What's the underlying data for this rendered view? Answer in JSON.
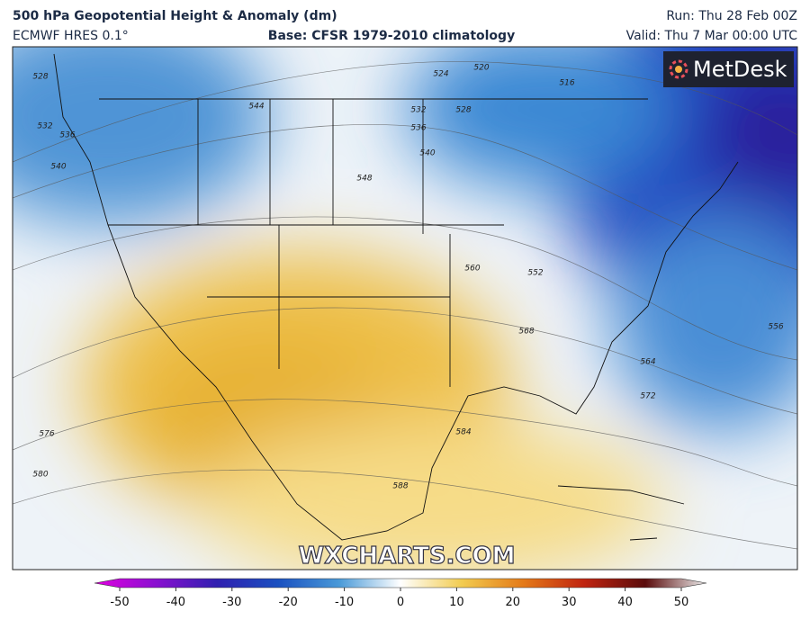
{
  "header": {
    "title": "500 hPa Geopotential Height & Anomaly (dm)",
    "model": "ECMWF HRES 0.1°",
    "base": "Base: CFSR 1979-2010 climatology",
    "run": "Run: Thu 28 Feb 00Z",
    "valid": "Valid: Thu 7 Mar 00:00 UTC"
  },
  "map": {
    "logo": "MetDesk",
    "watermark": "WXCHARTS.COM",
    "contour_labels": [
      "528",
      "532",
      "536",
      "540",
      "544",
      "524",
      "520",
      "516",
      "532",
      "528",
      "536",
      "540",
      "548",
      "560",
      "552",
      "568",
      "556",
      "564",
      "572",
      "576",
      "584",
      "580",
      "588"
    ]
  },
  "colorbar": {
    "ticks": [
      -50,
      -40,
      -30,
      -20,
      -10,
      0,
      10,
      20,
      30,
      40,
      50
    ]
  }
}
